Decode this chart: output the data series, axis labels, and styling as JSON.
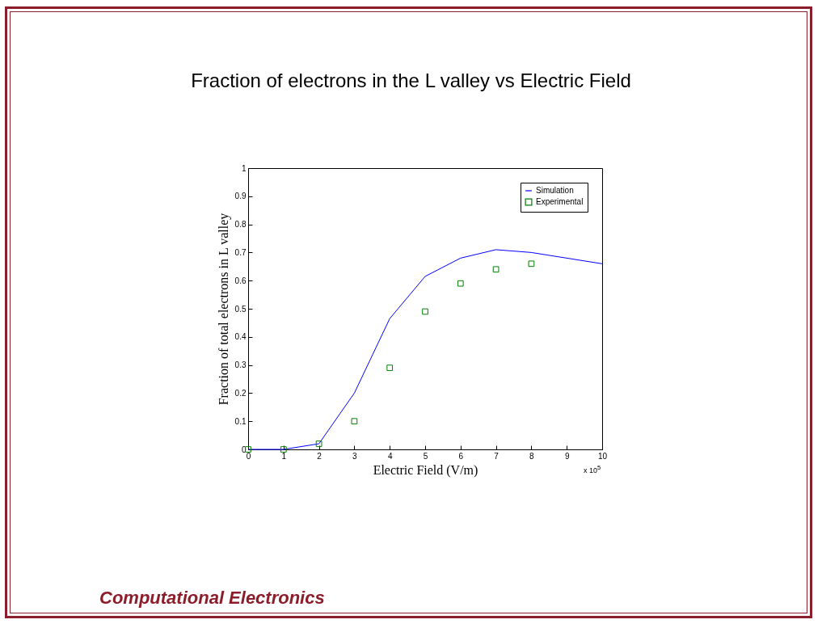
{
  "chart_data": {
    "type": "line",
    "title": "Fraction of electrons in the L valley vs Electric Field",
    "xlabel": "Electric Field (V/m)",
    "ylabel": "Fraction of total electrons in L  valley",
    "series": [
      {
        "name": "Simulation",
        "type": "line",
        "color": "#0000ff",
        "x": [
          0,
          0.5,
          1,
          2,
          3,
          4,
          5,
          6,
          7,
          8,
          10
        ],
        "values": [
          0,
          0,
          0,
          0.02,
          0.2,
          0.465,
          0.615,
          0.68,
          0.71,
          0.7,
          0.66
        ]
      },
      {
        "name": "Experimental",
        "type": "scatter",
        "marker": "square",
        "color": "#008000",
        "x": [
          0,
          1,
          2,
          3,
          4,
          5,
          6,
          7,
          8
        ],
        "values": [
          0,
          0,
          0.02,
          0.1,
          0.29,
          0.49,
          0.59,
          0.64,
          0.66
        ]
      }
    ],
    "xlim": [
      0,
      10
    ],
    "xticks": [
      0,
      1,
      2,
      3,
      4,
      5,
      6,
      7,
      8,
      9,
      10
    ],
    "ylim": [
      0,
      1
    ],
    "yticks": [
      0,
      0.1,
      0.2,
      0.3,
      0.4,
      0.5,
      0.6,
      0.7,
      0.8,
      0.9,
      1
    ],
    "grid": false,
    "legend": "top right",
    "annotations": [
      "x 10$^{5}$",
      "Computational Electronics"
    ]
  }
}
